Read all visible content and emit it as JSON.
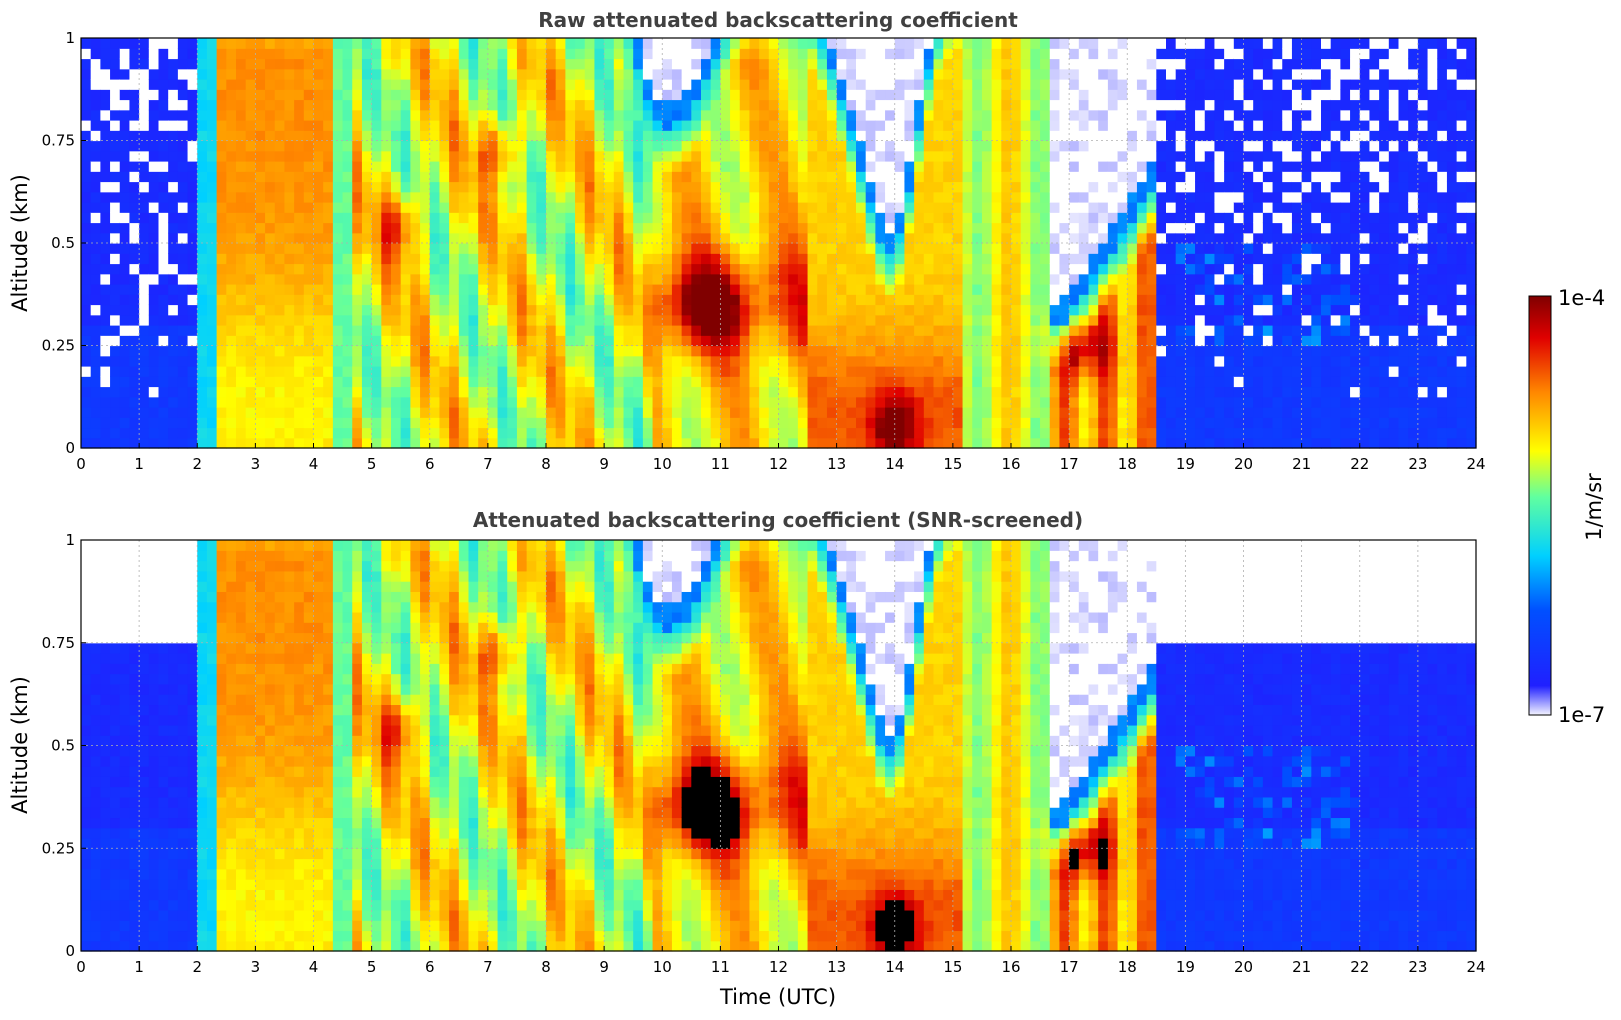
{
  "chart_data": [
    {
      "type": "heatmap",
      "title": "Raw attenuated backscattering coefficient",
      "xlabel": "",
      "ylabel": "Altitude (km)",
      "xlim": [
        0,
        24
      ],
      "ylim": [
        0,
        1
      ],
      "xticks": [
        "0",
        "1",
        "2",
        "3",
        "4",
        "5",
        "6",
        "7",
        "8",
        "9",
        "10",
        "11",
        "12",
        "13",
        "14",
        "15",
        "16",
        "17",
        "18",
        "19",
        "20",
        "21",
        "22",
        "23",
        "24"
      ],
      "yticks": [
        "0",
        "0.25",
        "0.5",
        "0.75",
        "1"
      ],
      "grid": true,
      "screened": false
    },
    {
      "type": "heatmap",
      "title": "Attenuated backscattering coefficient (SNR-screened)",
      "xlabel": "Time (UTC)",
      "ylabel": "Altitude (km)",
      "xlim": [
        0,
        24
      ],
      "ylim": [
        0,
        1
      ],
      "xticks": [
        "0",
        "1",
        "2",
        "3",
        "4",
        "5",
        "6",
        "7",
        "8",
        "9",
        "10",
        "11",
        "12",
        "13",
        "14",
        "15",
        "16",
        "17",
        "18",
        "19",
        "20",
        "21",
        "22",
        "23",
        "24"
      ],
      "yticks": [
        "0",
        "0.25",
        "0.5",
        "0.75",
        "1"
      ],
      "grid": true,
      "screened": true
    }
  ],
  "colorbar": {
    "label": "1/m/sr",
    "max_label": "1e-4",
    "min_label": "1e-7",
    "colors": [
      "#f2f2ff",
      "#0000ff",
      "#00c8ff",
      "#55ffaa",
      "#ffff00",
      "#ff8000",
      "#d00000",
      "#800000"
    ]
  }
}
